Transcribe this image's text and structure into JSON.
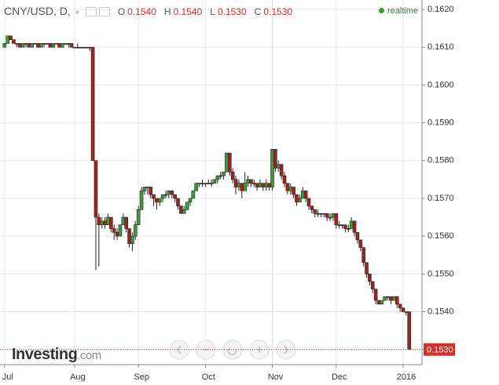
{
  "header": {
    "symbol": "CNY/USD, D,",
    "fields": [
      {
        "key": "O",
        "value": "0.1540"
      },
      {
        "key": "H",
        "value": "0.1540"
      },
      {
        "key": "L",
        "value": "0.1530"
      },
      {
        "key": "C",
        "value": "0.1530"
      }
    ],
    "status": "realtime"
  },
  "brand": {
    "name": "Investing",
    "suffix": ".com"
  },
  "chart_data": {
    "type": "candlestick",
    "up_color": "#3c9a3c",
    "down_color": "#a3231c",
    "flat_color": "#333333",
    "xlim": [
      -1.5,
      137.2
    ],
    "ylim": [
      0.1526,
      0.16225
    ],
    "xticks": [
      {
        "value": 0,
        "label": "Jul"
      },
      {
        "value": 23,
        "label": "Aug"
      },
      {
        "value": 44,
        "label": "Sep"
      },
      {
        "value": 66,
        "label": "Oct"
      },
      {
        "value": 88,
        "label": "Nov"
      },
      {
        "value": 109,
        "label": "Dec"
      },
      {
        "value": 131,
        "label": "2016"
      }
    ],
    "yticks": [
      {
        "value": 0.153,
        "label": "0.1530"
      },
      {
        "value": 0.154,
        "label": "0.1540"
      },
      {
        "value": 0.155,
        "label": "0.1550"
      },
      {
        "value": 0.156,
        "label": "0.1560"
      },
      {
        "value": 0.157,
        "label": "0.1570"
      },
      {
        "value": 0.158,
        "label": "0.1580"
      },
      {
        "value": 0.159,
        "label": "0.1590"
      },
      {
        "value": 0.16,
        "label": "0.1600"
      },
      {
        "value": 0.161,
        "label": "0.1610"
      },
      {
        "value": 0.162,
        "label": "0.1620"
      }
    ],
    "grid": true,
    "last_price": {
      "value": 0.153,
      "label": "0.1530"
    },
    "ohlc": [
      [
        0.161,
        0.1611,
        0.161,
        0.1611
      ],
      [
        0.1611,
        0.1613,
        0.1611,
        0.1613
      ],
      [
        0.1613,
        0.1613,
        0.1612,
        0.1612
      ],
      [
        0.1612,
        0.1612,
        0.1611,
        0.1611
      ],
      [
        0.1611,
        0.1611,
        0.161,
        0.1611
      ],
      [
        0.1611,
        0.1611,
        0.161,
        0.161
      ],
      [
        0.161,
        0.1611,
        0.161,
        0.1611
      ],
      [
        0.1611,
        0.1611,
        0.161,
        0.1611
      ],
      [
        0.1611,
        0.1611,
        0.161,
        0.161
      ],
      [
        0.161,
        0.1611,
        0.161,
        0.1611
      ],
      [
        0.1611,
        0.1611,
        0.1611,
        0.1611
      ],
      [
        0.1611,
        0.1611,
        0.161,
        0.161
      ],
      [
        0.161,
        0.1611,
        0.161,
        0.1611
      ],
      [
        0.1611,
        0.1611,
        0.161,
        0.1611
      ],
      [
        0.1611,
        0.1611,
        0.1611,
        0.1611
      ],
      [
        0.1611,
        0.1611,
        0.161,
        0.161
      ],
      [
        0.161,
        0.1611,
        0.161,
        0.1611
      ],
      [
        0.1611,
        0.1611,
        0.1611,
        0.1611
      ],
      [
        0.1611,
        0.1611,
        0.161,
        0.161
      ],
      [
        0.161,
        0.1611,
        0.161,
        0.1611
      ],
      [
        0.1611,
        0.1611,
        0.1611,
        0.1611
      ],
      [
        0.1611,
        0.1611,
        0.161,
        0.1611
      ],
      [
        0.1611,
        0.1611,
        0.161,
        0.161
      ],
      [
        0.161,
        0.161,
        0.161,
        0.161
      ],
      [
        0.161,
        0.1611,
        0.161,
        0.161
      ],
      [
        0.161,
        0.161,
        0.161,
        0.161
      ],
      [
        0.161,
        0.161,
        0.161,
        0.161
      ],
      [
        0.161,
        0.161,
        0.161,
        0.161
      ],
      [
        0.161,
        0.161,
        0.1609,
        0.161
      ],
      [
        0.161,
        0.161,
        0.158,
        0.158
      ],
      [
        0.158,
        0.158,
        0.1551,
        0.1565
      ],
      [
        0.1565,
        0.1566,
        0.1552,
        0.1563
      ],
      [
        0.1563,
        0.1565,
        0.1562,
        0.1564
      ],
      [
        0.1564,
        0.1565,
        0.1562,
        0.1563
      ],
      [
        0.1563,
        0.1566,
        0.1563,
        0.1565
      ],
      [
        0.1565,
        0.1565,
        0.1561,
        0.1562
      ],
      [
        0.1562,
        0.1563,
        0.1559,
        0.1561
      ],
      [
        0.1561,
        0.1562,
        0.1559,
        0.156
      ],
      [
        0.156,
        0.1563,
        0.156,
        0.1563
      ],
      [
        0.1563,
        0.1566,
        0.1563,
        0.1565
      ],
      [
        0.1565,
        0.1565,
        0.1561,
        0.1562
      ],
      [
        0.1562,
        0.1562,
        0.1557,
        0.1558
      ],
      [
        0.1558,
        0.1561,
        0.1556,
        0.156
      ],
      [
        0.156,
        0.1564,
        0.1559,
        0.1563
      ],
      [
        0.1563,
        0.1568,
        0.1563,
        0.1567
      ],
      [
        0.1567,
        0.1573,
        0.1567,
        0.1572
      ],
      [
        0.1572,
        0.1573,
        0.1571,
        0.1573
      ],
      [
        0.1573,
        0.1573,
        0.1571,
        0.1573
      ],
      [
        0.1573,
        0.1573,
        0.157,
        0.1571
      ],
      [
        0.1571,
        0.1571,
        0.1568,
        0.157
      ],
      [
        0.157,
        0.157,
        0.1567,
        0.1569
      ],
      [
        0.1569,
        0.157,
        0.1568,
        0.157
      ],
      [
        0.157,
        0.1571,
        0.1569,
        0.1571
      ],
      [
        0.1571,
        0.1572,
        0.157,
        0.1571
      ],
      [
        0.1571,
        0.1572,
        0.157,
        0.1572
      ],
      [
        0.1572,
        0.1572,
        0.157,
        0.1571
      ],
      [
        0.1571,
        0.1571,
        0.1569,
        0.157
      ],
      [
        0.157,
        0.157,
        0.1567,
        0.1568
      ],
      [
        0.1568,
        0.1568,
        0.1566,
        0.1566
      ],
      [
        0.1566,
        0.1568,
        0.1566,
        0.1567
      ],
      [
        0.1567,
        0.1569,
        0.1567,
        0.1569
      ],
      [
        0.1569,
        0.157,
        0.1568,
        0.157
      ],
      [
        0.157,
        0.1572,
        0.157,
        0.1572
      ],
      [
        0.1572,
        0.1574,
        0.1572,
        0.1574
      ],
      [
        0.1574,
        0.1574,
        0.1573,
        0.1574
      ],
      [
        0.1574,
        0.1575,
        0.1573,
        0.1574
      ],
      [
        0.1574,
        0.1574,
        0.1573,
        0.1574
      ],
      [
        0.1574,
        0.1575,
        0.1574,
        0.1574
      ],
      [
        0.1574,
        0.1575,
        0.1573,
        0.1574
      ],
      [
        0.1574,
        0.1575,
        0.1574,
        0.1575
      ],
      [
        0.1575,
        0.1576,
        0.1574,
        0.1576
      ],
      [
        0.1576,
        0.1577,
        0.1575,
        0.1576
      ],
      [
        0.1576,
        0.1577,
        0.1575,
        0.1577
      ],
      [
        0.1577,
        0.1582,
        0.1577,
        0.1582
      ],
      [
        0.1582,
        0.1582,
        0.1576,
        0.1577
      ],
      [
        0.1577,
        0.1578,
        0.1574,
        0.1575
      ],
      [
        0.1575,
        0.1576,
        0.1571,
        0.1573
      ],
      [
        0.1573,
        0.1575,
        0.1572,
        0.1574
      ],
      [
        0.1574,
        0.1574,
        0.157,
        0.1572
      ],
      [
        0.1572,
        0.1577,
        0.1572,
        0.1574
      ],
      [
        0.1574,
        0.1576,
        0.1573,
        0.1575
      ],
      [
        0.1575,
        0.1575,
        0.1573,
        0.1574
      ],
      [
        0.1574,
        0.1575,
        0.1573,
        0.1574
      ],
      [
        0.1574,
        0.1574,
        0.1572,
        0.1573
      ],
      [
        0.1573,
        0.1575,
        0.1573,
        0.1574
      ],
      [
        0.1574,
        0.1574,
        0.1572,
        0.1573
      ],
      [
        0.1573,
        0.1575,
        0.1572,
        0.1574
      ],
      [
        0.1574,
        0.1574,
        0.1572,
        0.1573
      ],
      [
        0.1573,
        0.1583,
        0.1572,
        0.1583
      ],
      [
        0.1583,
        0.1583,
        0.1577,
        0.1578
      ],
      [
        0.1578,
        0.158,
        0.1577,
        0.1579
      ],
      [
        0.1579,
        0.1579,
        0.1575,
        0.1576
      ],
      [
        0.1576,
        0.1577,
        0.1573,
        0.1574
      ],
      [
        0.1574,
        0.1574,
        0.1571,
        0.1572
      ],
      [
        0.1572,
        0.1574,
        0.1571,
        0.1573
      ],
      [
        0.1573,
        0.1573,
        0.157,
        0.1571
      ],
      [
        0.1571,
        0.1571,
        0.1568,
        0.1569
      ],
      [
        0.1569,
        0.1571,
        0.1569,
        0.157
      ],
      [
        0.157,
        0.1573,
        0.157,
        0.1572
      ],
      [
        0.1572,
        0.1572,
        0.1569,
        0.157
      ],
      [
        0.157,
        0.157,
        0.1567,
        0.1568
      ],
      [
        0.1568,
        0.1568,
        0.1566,
        0.1567
      ],
      [
        0.1567,
        0.1567,
        0.1565,
        0.1566
      ],
      [
        0.1566,
        0.1567,
        0.1565,
        0.1566
      ],
      [
        0.1566,
        0.1566,
        0.1565,
        0.1566
      ],
      [
        0.1566,
        0.1566,
        0.1565,
        0.1566
      ],
      [
        0.1566,
        0.1566,
        0.1564,
        0.1565
      ],
      [
        0.1565,
        0.1566,
        0.1564,
        0.1565
      ],
      [
        0.1565,
        0.1566,
        0.1564,
        0.1566
      ],
      [
        0.1566,
        0.1566,
        0.1562,
        0.1563
      ],
      [
        0.1563,
        0.1564,
        0.1562,
        0.1563
      ],
      [
        0.1563,
        0.1563,
        0.1562,
        0.1563
      ],
      [
        0.1563,
        0.1563,
        0.1561,
        0.1562
      ],
      [
        0.1562,
        0.1563,
        0.1561,
        0.1562
      ],
      [
        0.1562,
        0.1565,
        0.1562,
        0.1564
      ],
      [
        0.1564,
        0.1564,
        0.156,
        0.1561
      ],
      [
        0.1561,
        0.1561,
        0.1558,
        0.1559
      ],
      [
        0.1559,
        0.1559,
        0.1556,
        0.1557
      ],
      [
        0.1557,
        0.1557,
        0.1552,
        0.1553
      ],
      [
        0.1553,
        0.1553,
        0.1549,
        0.155
      ],
      [
        0.155,
        0.155,
        0.1547,
        0.1548
      ],
      [
        0.1548,
        0.1548,
        0.1545,
        0.1546
      ],
      [
        0.1546,
        0.1546,
        0.1542,
        0.1543
      ],
      [
        0.1543,
        0.1543,
        0.1542,
        0.1542
      ],
      [
        0.1542,
        0.1543,
        0.1542,
        0.1543
      ],
      [
        0.1543,
        0.1544,
        0.1543,
        0.1544
      ],
      [
        0.1544,
        0.1544,
        0.1543,
        0.1544
      ],
      [
        0.1544,
        0.1544,
        0.1542,
        0.1543
      ],
      [
        0.1543,
        0.1544,
        0.1543,
        0.1544
      ],
      [
        0.1544,
        0.1544,
        0.1541,
        0.1542
      ],
      [
        0.1542,
        0.1542,
        0.154,
        0.1541
      ],
      [
        0.1541,
        0.1541,
        0.154,
        0.154
      ],
      [
        0.154,
        0.154,
        0.1539,
        0.154
      ],
      [
        0.154,
        0.154,
        0.153,
        0.153
      ]
    ]
  }
}
